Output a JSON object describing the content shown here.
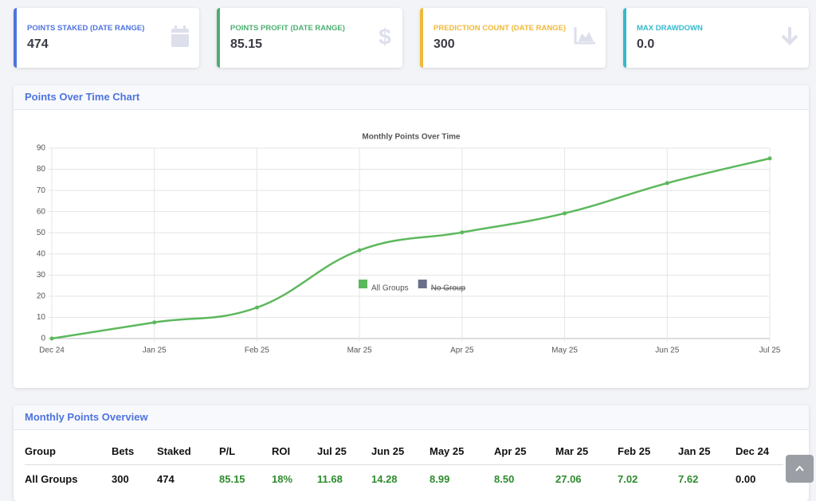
{
  "cards": [
    {
      "label": "POINTS STAKED (DATE RANGE)",
      "value": "474"
    },
    {
      "label": "POINTS PROFIT (DATE RANGE)",
      "value": "85.15"
    },
    {
      "label": "PREDICTION COUNT (DATE RANGE)",
      "value": "300"
    },
    {
      "label": "MAX DRAWDOWN",
      "value": "0.0"
    }
  ],
  "chart_panel": {
    "title": "Points Over Time Chart"
  },
  "chart_data": {
    "type": "line",
    "title": "Monthly Points Over Time",
    "categories": [
      "Dec 24",
      "Jan 25",
      "Feb 25",
      "Mar 25",
      "Apr 25",
      "May 25",
      "Jun 25",
      "Jul 25"
    ],
    "series": [
      {
        "name": "All Groups",
        "color": "#5cb85c",
        "values": [
          0,
          7.62,
          14.64,
          41.7,
          50.2,
          59.19,
          73.47,
          85.15
        ]
      },
      {
        "name": "No Group",
        "color": "#6b7089",
        "hidden": true,
        "values": [
          null,
          null,
          null,
          null,
          null,
          null,
          null,
          null
        ]
      }
    ],
    "ylim": [
      0,
      90
    ],
    "yticks": [
      0,
      10,
      20,
      30,
      40,
      50,
      60,
      70,
      80,
      90
    ],
    "grid": true,
    "legend": "bottom"
  },
  "table": {
    "title": "Monthly Points Overview",
    "columns": [
      "Group",
      "Bets",
      "Staked",
      "P/L",
      "ROI",
      "Jul 25",
      "Jun 25",
      "May 25",
      "Apr 25",
      "Mar 25",
      "Feb 25",
      "Jan 25",
      "Dec 24"
    ],
    "rows": [
      [
        "All Groups",
        "300",
        "474",
        "85.15",
        "18%",
        "11.68",
        "14.28",
        "8.99",
        "8.50",
        "27.06",
        "7.02",
        "7.62",
        "0.00"
      ]
    ]
  }
}
